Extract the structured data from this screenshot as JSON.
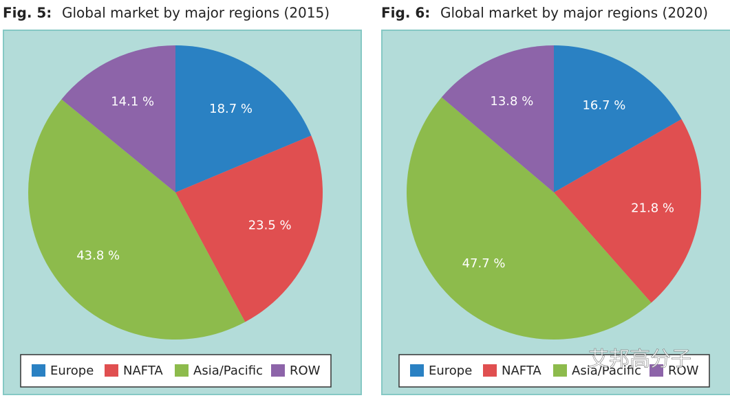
{
  "chart_data": [
    {
      "type": "pie",
      "figure_label": "Fig. 5:",
      "title": "Global market by major regions (2015)",
      "categories": [
        "Europe",
        "NAFTA",
        "Asia/Pacific",
        "ROW"
      ],
      "values": [
        18.7,
        23.5,
        43.8,
        14.1
      ],
      "value_labels": [
        "18.7 %",
        "23.5 %",
        "43.8 %",
        "14.1 %"
      ],
      "colors": [
        "#2a81c3",
        "#e04f50",
        "#8dbb4c",
        "#8d64a9"
      ]
    },
    {
      "type": "pie",
      "figure_label": "Fig. 6:",
      "title": "Global market by major regions (2020)",
      "categories": [
        "Europe",
        "NAFTA",
        "Asia/Pacific",
        "ROW"
      ],
      "values": [
        16.7,
        21.8,
        47.7,
        13.8
      ],
      "value_labels": [
        "16.7 %",
        "21.8 %",
        "47.7 %",
        "13.8 %"
      ],
      "colors": [
        "#2a81c3",
        "#e04f50",
        "#8dbb4c",
        "#8d64a9"
      ]
    }
  ],
  "watermark": "艾邦高分子"
}
